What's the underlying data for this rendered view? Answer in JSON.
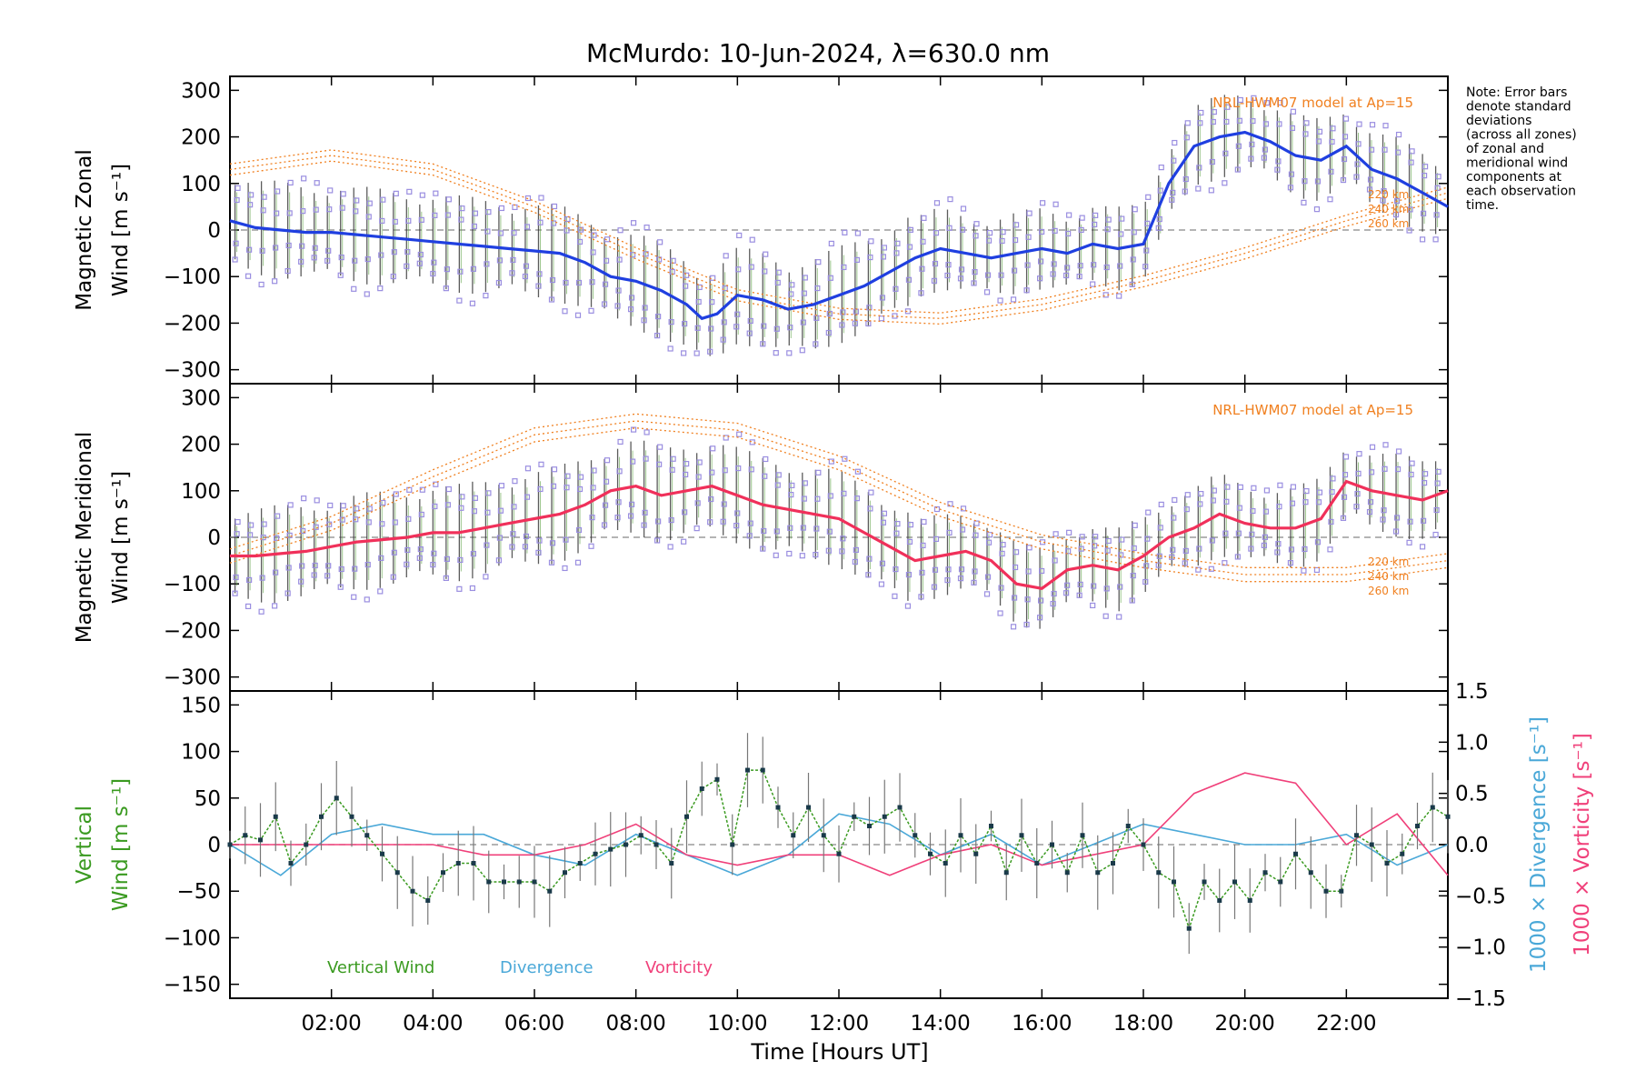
{
  "title": "McMurdo: 10-Jun-2024, λ=630.0 nm",
  "note_lines": [
    "Note: Error bars",
    "denote standard",
    "deviations",
    "(across all zones)",
    "of zonal and",
    "meridional wind",
    "components at",
    "each observation",
    "time."
  ],
  "colors": {
    "zonal": "#1f3fe0",
    "meridional": "#f0305a",
    "model": "#f08020",
    "vertical": "#3a9a20",
    "divergence": "#4aa8d8",
    "vorticity": "#f0407a",
    "scatter": "#9a8ee0",
    "zero_line": "#888888"
  },
  "xaxis": {
    "label": "Time [Hours UT]",
    "range": [
      0.0,
      24.0
    ],
    "ticks": [
      2,
      4,
      6,
      8,
      10,
      12,
      14,
      16,
      18,
      20,
      22
    ],
    "tick_labels": [
      "02:00",
      "04:00",
      "06:00",
      "08:00",
      "10:00",
      "12:00",
      "14:00",
      "16:00",
      "18:00",
      "20:00",
      "22:00"
    ]
  },
  "panels": {
    "zonal": {
      "ylabel_line1": "Magnetic Zonal",
      "ylabel_line2": "Wind [m s⁻¹]",
      "ylim": [
        -330,
        330
      ],
      "yticks": [
        -300,
        -200,
        -100,
        0,
        100,
        200,
        300
      ],
      "ytick_labels": [
        "−300",
        "−200",
        "−100",
        "0",
        "100",
        "200",
        "300"
      ],
      "model_label": "NRL-HWM07 model at Ap=15",
      "height_labels": [
        "220 km",
        "240 km",
        "260 km"
      ]
    },
    "meridional": {
      "ylabel_line1": "Magnetic Meridional",
      "ylabel_line2": "Wind [m s⁻¹]",
      "ylim": [
        -330,
        330
      ],
      "yticks": [
        -300,
        -200,
        -100,
        0,
        100,
        200,
        300
      ],
      "ytick_labels": [
        "−300",
        "−200",
        "−100",
        "0",
        "100",
        "200",
        "300"
      ],
      "model_label": "NRL-HWM07 model at Ap=15",
      "height_labels": [
        "220 km",
        "240 km",
        "260 km"
      ]
    },
    "vertical": {
      "ylabel_line1": "Vertical",
      "ylabel_line2": "Wind [m s⁻¹]",
      "ylim": [
        -165,
        165
      ],
      "yticks": [
        -150,
        -100,
        -50,
        0,
        50,
        100,
        150
      ],
      "ytick_labels": [
        "−150",
        "−100",
        "−50",
        "0",
        "50",
        "100",
        "150"
      ],
      "right_ylim": [
        -1.5,
        1.5
      ],
      "right_yticks": [
        -1.5,
        -1.0,
        -0.5,
        0.0,
        0.5,
        1.0,
        1.5
      ],
      "right_ytick_labels": [
        "−1.5",
        "−1.0",
        "−0.5",
        "0.0",
        "0.5",
        "1.0",
        "1.5"
      ],
      "right_label_div": "1000 × Divergence [s⁻¹]",
      "right_label_vort": "1000 × Vorticity [s⁻¹]",
      "legend": [
        "Vertical Wind",
        "Divergence",
        "Vorticity"
      ]
    }
  },
  "chart_data": [
    {
      "type": "line",
      "panel": "zonal",
      "title": "McMurdo: 10-Jun-2024, λ=630.0 nm",
      "xlabel": "Time [Hours UT]",
      "ylabel": "Magnetic Zonal Wind [m s⁻¹]",
      "ylim": [
        -330,
        330
      ],
      "grid": false,
      "series": [
        {
          "x": [
            0.0,
            0.5,
            1.0,
            1.5,
            2.0,
            2.5,
            3.0,
            3.5,
            4.0,
            4.5,
            5.0,
            5.5,
            6.0,
            6.5,
            7.0,
            7.5,
            8.0,
            8.5,
            9.0,
            9.3,
            9.6,
            10.0,
            10.5,
            11.0,
            11.5,
            12.0,
            12.5,
            13.0,
            13.5,
            14.0,
            14.5,
            15.0,
            15.5,
            16.0,
            16.5,
            17.0,
            17.5,
            18.0,
            18.5,
            19.0,
            19.5,
            20.0,
            20.5,
            21.0,
            21.5,
            22.0,
            22.5,
            23.0,
            23.5,
            24.0
          ],
          "values": [
            20,
            5,
            0,
            -5,
            -5,
            -10,
            -15,
            -20,
            -25,
            -30,
            -35,
            -40,
            -45,
            -50,
            -70,
            -100,
            -110,
            -130,
            -160,
            -190,
            -180,
            -140,
            -150,
            -170,
            -160,
            -140,
            -120,
            -90,
            -60,
            -40,
            -50,
            -60,
            -50,
            -40,
            -50,
            -30,
            -40,
            -30,
            100,
            180,
            200,
            210,
            190,
            160,
            150,
            180,
            130,
            110,
            80,
            50
          ]
        },
        {
          "name": "NRL-HWM07 model at Ap=15",
          "x": [
            0,
            2,
            4,
            6,
            8,
            10,
            12,
            14,
            16,
            18,
            20,
            22,
            24
          ],
          "values": [
            130,
            160,
            130,
            50,
            -50,
            -140,
            -180,
            -190,
            -160,
            -110,
            -50,
            20,
            80
          ]
        }
      ]
    },
    {
      "type": "line",
      "panel": "meridional",
      "xlabel": "Time [Hours UT]",
      "ylabel": "Magnetic Meridional Wind [m s⁻¹]",
      "ylim": [
        -330,
        330
      ],
      "grid": false,
      "series": [
        {
          "x": [
            0.0,
            0.5,
            1.0,
            1.5,
            2.0,
            2.5,
            3.0,
            3.5,
            4.0,
            4.5,
            5.0,
            5.5,
            6.0,
            6.5,
            7.0,
            7.5,
            8.0,
            8.5,
            9.0,
            9.5,
            10.0,
            10.5,
            11.0,
            11.5,
            12.0,
            12.5,
            13.0,
            13.5,
            14.0,
            14.5,
            15.0,
            15.5,
            16.0,
            16.5,
            17.0,
            17.5,
            18.0,
            18.5,
            19.0,
            19.5,
            20.0,
            20.5,
            21.0,
            21.5,
            22.0,
            22.5,
            23.0,
            23.5,
            24.0
          ],
          "values": [
            -40,
            -40,
            -35,
            -30,
            -20,
            -10,
            -5,
            0,
            10,
            10,
            20,
            30,
            40,
            50,
            70,
            100,
            110,
            90,
            100,
            110,
            90,
            70,
            60,
            50,
            40,
            10,
            -20,
            -50,
            -40,
            -30,
            -50,
            -100,
            -110,
            -70,
            -60,
            -70,
            -40,
            0,
            20,
            50,
            30,
            20,
            20,
            40,
            120,
            100,
            90,
            80,
            100
          ]
        },
        {
          "name": "NRL-HWM07 model at Ap=15",
          "x": [
            0,
            2,
            4,
            6,
            8,
            10,
            12,
            14,
            16,
            18,
            20,
            22,
            24
          ],
          "values": [
            -40,
            30,
            130,
            220,
            250,
            230,
            160,
            60,
            -10,
            -50,
            -80,
            -80,
            -50
          ]
        }
      ]
    },
    {
      "type": "line",
      "panel": "vertical",
      "xlabel": "Time [Hours UT]",
      "ylabel": "Vertical Wind [m s⁻¹]",
      "ylim": [
        -165,
        165
      ],
      "grid": false,
      "series": [
        {
          "name": "Vertical Wind",
          "x": [
            0.0,
            0.3,
            0.6,
            0.9,
            1.2,
            1.5,
            1.8,
            2.1,
            2.4,
            2.7,
            3.0,
            3.3,
            3.6,
            3.9,
            4.2,
            4.5,
            4.8,
            5.1,
            5.4,
            5.7,
            6.0,
            6.3,
            6.6,
            6.9,
            7.2,
            7.5,
            7.8,
            8.1,
            8.4,
            8.7,
            9.0,
            9.3,
            9.6,
            9.9,
            10.2,
            10.5,
            10.8,
            11.1,
            11.4,
            11.7,
            12.0,
            12.3,
            12.6,
            12.9,
            13.2,
            13.5,
            13.8,
            14.1,
            14.4,
            14.7,
            15.0,
            15.3,
            15.6,
            15.9,
            16.2,
            16.5,
            16.8,
            17.1,
            17.4,
            17.7,
            18.0,
            18.3,
            18.6,
            18.9,
            19.2,
            19.5,
            19.8,
            20.1,
            20.4,
            20.7,
            21.0,
            21.3,
            21.6,
            21.9,
            22.2,
            22.5,
            22.8,
            23.1,
            23.4,
            23.7,
            24.0
          ],
          "values": [
            0,
            10,
            5,
            30,
            -20,
            0,
            30,
            50,
            30,
            10,
            -10,
            -30,
            -50,
            -60,
            -30,
            -20,
            -20,
            -40,
            -40,
            -40,
            -40,
            -50,
            -30,
            -20,
            -10,
            -5,
            0,
            10,
            0,
            -20,
            30,
            60,
            70,
            0,
            80,
            80,
            40,
            10,
            40,
            10,
            -10,
            30,
            20,
            30,
            40,
            10,
            -10,
            -20,
            10,
            -10,
            20,
            -30,
            10,
            -20,
            0,
            -30,
            10,
            -30,
            -20,
            20,
            0,
            -30,
            -40,
            -90,
            -40,
            -60,
            -40,
            -60,
            -30,
            -40,
            -10,
            -30,
            -50,
            -50,
            10,
            0,
            -20,
            -10,
            20,
            40,
            30
          ]
        },
        {
          "name": "Divergence",
          "x": [
            0,
            1,
            2,
            3,
            4,
            5,
            6,
            7,
            8,
            9,
            10,
            11,
            12,
            13,
            14,
            15,
            16,
            17,
            18,
            19,
            20,
            21,
            22,
            23,
            24
          ],
          "values": [
            0.0,
            -0.3,
            0.1,
            0.2,
            0.1,
            0.1,
            -0.1,
            -0.2,
            0.1,
            -0.1,
            -0.3,
            -0.1,
            0.3,
            0.2,
            -0.1,
            0.1,
            -0.2,
            0.0,
            0.2,
            0.1,
            0.0,
            0.0,
            0.1,
            -0.2,
            0.0
          ]
        },
        {
          "name": "Vorticity",
          "x": [
            0,
            1,
            2,
            3,
            4,
            5,
            6,
            7,
            8,
            9,
            10,
            11,
            12,
            13,
            14,
            15,
            16,
            17,
            18,
            19,
            20,
            21,
            22,
            23,
            24
          ],
          "values": [
            0.0,
            0.0,
            0.0,
            0.0,
            0.0,
            -0.1,
            -0.1,
            0.0,
            0.2,
            -0.1,
            -0.2,
            -0.1,
            -0.1,
            -0.3,
            -0.1,
            0.0,
            -0.2,
            -0.1,
            0.0,
            0.5,
            0.7,
            0.6,
            0.0,
            0.3,
            -0.3
          ]
        }
      ]
    }
  ]
}
